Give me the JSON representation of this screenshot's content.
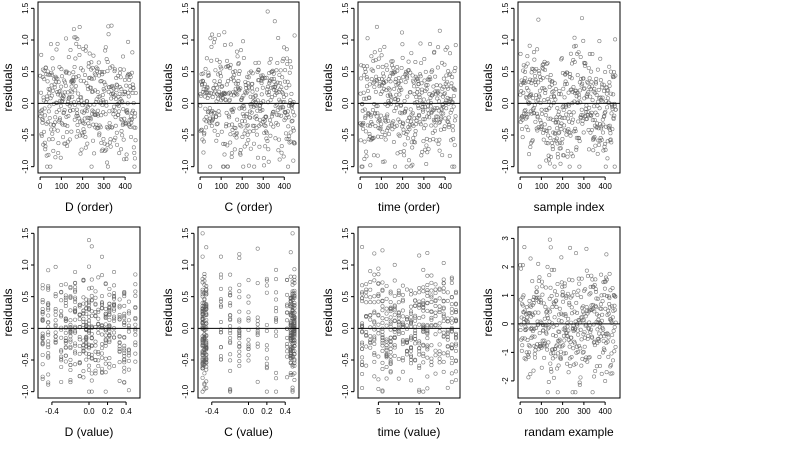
{
  "chart_data": [
    {
      "id": "p1",
      "type": "scatter",
      "xlabel": "D (order)",
      "ylabel": "residuals",
      "xlim": [
        -10,
        470
      ],
      "ylim": [
        -1.1,
        1.6
      ],
      "xticks": [
        0,
        100,
        200,
        300,
        400
      ],
      "xtick_labels": [
        "0",
        "100",
        "200",
        "300",
        "400"
      ],
      "yticks": [
        -1.0,
        -0.5,
        0.0,
        0.5,
        1.0,
        1.5
      ],
      "ytick_labels": [
        "-1.0",
        "-0.5",
        "0.0",
        "0.5",
        "1.0",
        "1.5"
      ],
      "ref_line": 0,
      "n_points": 450,
      "x_kind": "index",
      "y_range": [
        -1.0,
        1.5
      ],
      "spread": 0.45
    },
    {
      "id": "p2",
      "type": "scatter",
      "xlabel": "C (order)",
      "ylabel": "residuals",
      "xlim": [
        -10,
        470
      ],
      "ylim": [
        -1.1,
        1.6
      ],
      "xticks": [
        0,
        100,
        200,
        300,
        400
      ],
      "xtick_labels": [
        "0",
        "100",
        "200",
        "300",
        "400"
      ],
      "yticks": [
        -1.0,
        -0.5,
        0.0,
        0.5,
        1.0,
        1.5
      ],
      "ytick_labels": [
        "-1.0",
        "-0.5",
        "0.0",
        "0.5",
        "1.0",
        "1.5"
      ],
      "ref_line": 0,
      "n_points": 450,
      "x_kind": "index",
      "y_range": [
        -1.0,
        1.5
      ],
      "spread": 0.45
    },
    {
      "id": "p3",
      "type": "scatter",
      "xlabel": "time (order)",
      "ylabel": "residuals",
      "xlim": [
        -10,
        470
      ],
      "ylim": [
        -1.1,
        1.6
      ],
      "xticks": [
        0,
        100,
        200,
        300,
        400
      ],
      "xtick_labels": [
        "0",
        "100",
        "200",
        "300",
        "400"
      ],
      "yticks": [
        -1.0,
        -0.5,
        0.0,
        0.5,
        1.0,
        1.5
      ],
      "ytick_labels": [
        "-1.0",
        "-0.5",
        "0.0",
        "0.5",
        "1.0",
        "1.5"
      ],
      "ref_line": 0,
      "n_points": 450,
      "x_kind": "index",
      "y_range": [
        -1.0,
        1.5
      ],
      "spread": 0.45
    },
    {
      "id": "p4",
      "type": "scatter",
      "xlabel": "sample index",
      "ylabel": "residuals",
      "xlim": [
        -10,
        470
      ],
      "ylim": [
        -1.1,
        1.6
      ],
      "xticks": [
        0,
        100,
        200,
        300,
        400
      ],
      "xtick_labels": [
        "0",
        "100",
        "200",
        "300",
        "400"
      ],
      "yticks": [
        -1.0,
        -0.5,
        0.0,
        0.5,
        1.0,
        1.5
      ],
      "ytick_labels": [
        "-1.0",
        "-0.5",
        "0.0",
        "0.5",
        "1.0",
        "1.5"
      ],
      "ref_line": 0,
      "n_points": 450,
      "x_kind": "index_pattern",
      "y_range": [
        -1.0,
        1.5
      ],
      "spread": 0.45
    },
    {
      "id": "p5",
      "type": "scatter",
      "xlabel": "D (value)",
      "ylabel": "residuals",
      "xlim": [
        -0.55,
        0.55
      ],
      "ylim": [
        -1.1,
        1.6
      ],
      "xticks": [
        -0.4,
        0.0,
        0.2,
        0.4
      ],
      "xtick_labels": [
        "-0.4",
        "0.0",
        "0.2",
        "0.4"
      ],
      "yticks": [
        -1.0,
        -0.5,
        0.0,
        0.5,
        1.0,
        1.5
      ],
      "ytick_labels": [
        "-1.0",
        "-0.5",
        "0.0",
        "0.5",
        "1.0",
        "1.5"
      ],
      "ref_line": 0,
      "n_points": 450,
      "x_kind": "discrete",
      "x_levels": [
        -0.5,
        -0.44,
        -0.36,
        -0.3,
        -0.25,
        -0.2,
        -0.15,
        -0.1,
        -0.06,
        -0.03,
        0.0,
        0.03,
        0.07,
        0.1,
        0.14,
        0.18,
        0.22,
        0.27,
        0.33,
        0.38,
        0.43,
        0.5
      ],
      "y_range": [
        -1.0,
        1.5
      ],
      "spread": 0.45
    },
    {
      "id": "p6",
      "type": "scatter",
      "xlabel": "C (value)",
      "ylabel": "residuals",
      "xlim": [
        -0.55,
        0.55
      ],
      "ylim": [
        -1.1,
        1.6
      ],
      "xticks": [
        -0.4,
        0.0,
        0.2,
        0.4
      ],
      "xtick_labels": [
        "-0.4",
        "0.0",
        "0.2",
        "0.4"
      ],
      "yticks": [
        -1.0,
        -0.5,
        0.0,
        0.5,
        1.0,
        1.5
      ],
      "ytick_labels": [
        "-1.0",
        "-0.5",
        "0.0",
        "0.5",
        "1.0",
        "1.5"
      ],
      "ref_line": 0,
      "n_points": 450,
      "x_kind": "discrete_edges",
      "x_levels": [
        -0.5,
        -0.48,
        -0.46,
        -0.3,
        -0.2,
        -0.1,
        0.0,
        0.1,
        0.2,
        0.3,
        0.42,
        0.46,
        0.48,
        0.5
      ],
      "y_range": [
        -1.0,
        1.5
      ],
      "spread": 0.45
    },
    {
      "id": "p7",
      "type": "scatter",
      "xlabel": "time (value)",
      "ylabel": "residuals",
      "xlim": [
        0,
        25
      ],
      "ylim": [
        -1.1,
        1.6
      ],
      "xticks": [
        5,
        10,
        15,
        20
      ],
      "xtick_labels": [
        "5",
        "10",
        "15",
        "20"
      ],
      "yticks": [
        -1.0,
        -0.5,
        0.0,
        0.5,
        1.0,
        1.5
      ],
      "ytick_labels": [
        "-1.0",
        "-0.5",
        "0.0",
        "0.5",
        "1.0",
        "1.5"
      ],
      "ref_line": 0,
      "n_points": 450,
      "x_kind": "discrete",
      "x_levels": [
        1,
        2,
        3,
        4,
        5,
        6,
        7,
        8,
        9,
        10,
        11,
        12,
        13,
        14,
        15,
        16,
        17,
        18,
        19,
        20,
        21,
        22,
        23,
        24
      ],
      "y_range": [
        -1.0,
        1.5
      ],
      "spread": 0.45
    },
    {
      "id": "p8",
      "type": "scatter",
      "xlabel": "randam example",
      "ylabel": "residuals",
      "xlim": [
        -10,
        470
      ],
      "ylim": [
        -2.6,
        3.4
      ],
      "xticks": [
        0,
        100,
        200,
        300,
        400
      ],
      "xtick_labels": [
        "0",
        "100",
        "200",
        "300",
        "400"
      ],
      "yticks": [
        -2,
        -1,
        0,
        1,
        2,
        3
      ],
      "ytick_labels": [
        "-2",
        "-1",
        "0",
        "1",
        "2",
        "3"
      ],
      "ref_line": 0,
      "n_points": 450,
      "x_kind": "index",
      "y_range": [
        -2.4,
        3.1
      ],
      "spread": 1.0
    }
  ]
}
